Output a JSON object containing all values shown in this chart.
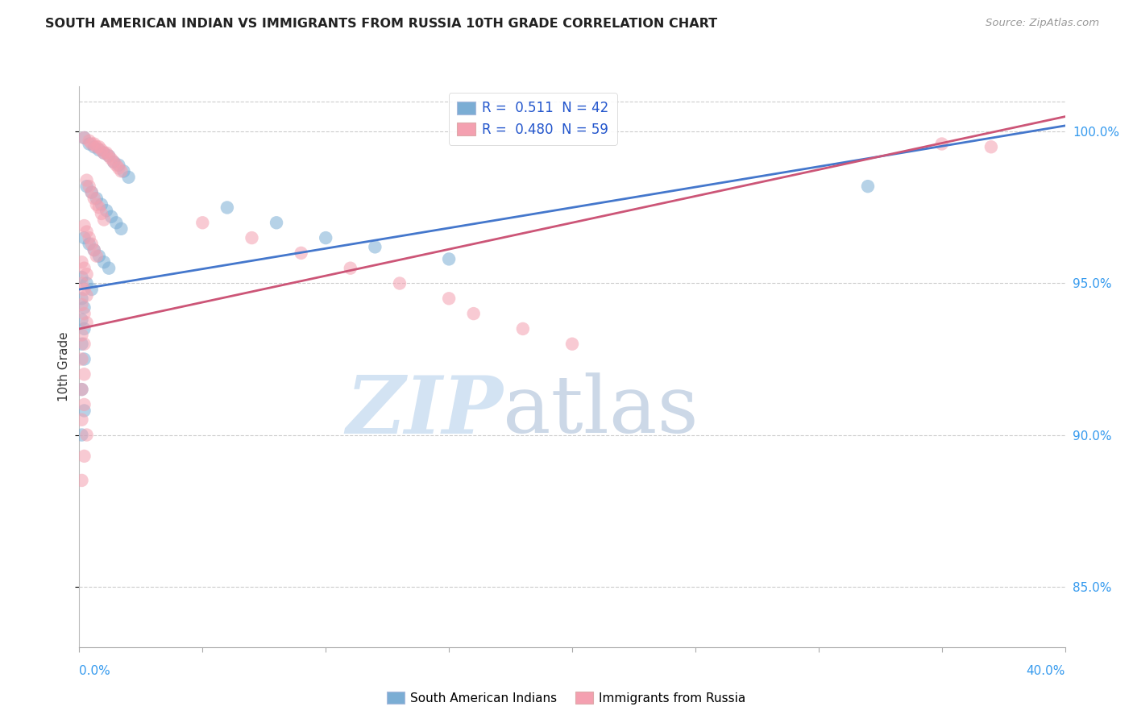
{
  "title": "SOUTH AMERICAN INDIAN VS IMMIGRANTS FROM RUSSIA 10TH GRADE CORRELATION CHART",
  "source": "Source: ZipAtlas.com",
  "ylabel": "10th Grade",
  "legend1_label": "South American Indians",
  "legend2_label": "Immigrants from Russia",
  "r1": 0.511,
  "n1": 42,
  "r2": 0.48,
  "n2": 59,
  "blue_color": "#7BADD4",
  "pink_color": "#F4A0B0",
  "blue_line_color": "#4477CC",
  "pink_line_color": "#CC5577",
  "xlim": [
    0,
    0.4
  ],
  "ylim": [
    83.0,
    101.5
  ],
  "yticks": [
    85.0,
    90.0,
    95.0,
    100.0
  ],
  "ytick_labels": [
    "85.0%",
    "90.0%",
    "95.0%",
    "100.0%"
  ],
  "xtick_positions": [
    0.0,
    0.05,
    0.1,
    0.15,
    0.2,
    0.25,
    0.3,
    0.35,
    0.4
  ],
  "blue_dots": [
    [
      0.002,
      99.8
    ],
    [
      0.004,
      99.6
    ],
    [
      0.006,
      99.5
    ],
    [
      0.008,
      99.4
    ],
    [
      0.01,
      99.3
    ],
    [
      0.012,
      99.2
    ],
    [
      0.014,
      99.0
    ],
    [
      0.016,
      98.9
    ],
    [
      0.018,
      98.7
    ],
    [
      0.02,
      98.5
    ],
    [
      0.003,
      98.2
    ],
    [
      0.005,
      98.0
    ],
    [
      0.007,
      97.8
    ],
    [
      0.009,
      97.6
    ],
    [
      0.011,
      97.4
    ],
    [
      0.013,
      97.2
    ],
    [
      0.015,
      97.0
    ],
    [
      0.017,
      96.8
    ],
    [
      0.002,
      96.5
    ],
    [
      0.004,
      96.3
    ],
    [
      0.006,
      96.1
    ],
    [
      0.008,
      95.9
    ],
    [
      0.01,
      95.7
    ],
    [
      0.012,
      95.5
    ],
    [
      0.001,
      95.2
    ],
    [
      0.003,
      95.0
    ],
    [
      0.005,
      94.8
    ],
    [
      0.001,
      94.5
    ],
    [
      0.002,
      94.2
    ],
    [
      0.001,
      93.8
    ],
    [
      0.002,
      93.5
    ],
    [
      0.001,
      93.0
    ],
    [
      0.002,
      92.5
    ],
    [
      0.001,
      91.5
    ],
    [
      0.002,
      90.8
    ],
    [
      0.001,
      90.0
    ],
    [
      0.06,
      97.5
    ],
    [
      0.08,
      97.0
    ],
    [
      0.1,
      96.5
    ],
    [
      0.12,
      96.2
    ],
    [
      0.15,
      95.8
    ],
    [
      0.32,
      98.2
    ]
  ],
  "pink_dots": [
    [
      0.002,
      99.8
    ],
    [
      0.004,
      99.7
    ],
    [
      0.005,
      99.6
    ],
    [
      0.006,
      99.6
    ],
    [
      0.007,
      99.5
    ],
    [
      0.008,
      99.5
    ],
    [
      0.009,
      99.4
    ],
    [
      0.01,
      99.3
    ],
    [
      0.011,
      99.3
    ],
    [
      0.012,
      99.2
    ],
    [
      0.013,
      99.1
    ],
    [
      0.014,
      99.0
    ],
    [
      0.015,
      98.9
    ],
    [
      0.016,
      98.8
    ],
    [
      0.017,
      98.7
    ],
    [
      0.003,
      98.4
    ],
    [
      0.004,
      98.2
    ],
    [
      0.005,
      98.0
    ],
    [
      0.006,
      97.8
    ],
    [
      0.007,
      97.6
    ],
    [
      0.008,
      97.5
    ],
    [
      0.009,
      97.3
    ],
    [
      0.01,
      97.1
    ],
    [
      0.002,
      96.9
    ],
    [
      0.003,
      96.7
    ],
    [
      0.004,
      96.5
    ],
    [
      0.005,
      96.3
    ],
    [
      0.006,
      96.1
    ],
    [
      0.007,
      95.9
    ],
    [
      0.001,
      95.7
    ],
    [
      0.002,
      95.5
    ],
    [
      0.003,
      95.3
    ],
    [
      0.001,
      95.0
    ],
    [
      0.002,
      94.8
    ],
    [
      0.003,
      94.6
    ],
    [
      0.001,
      94.3
    ],
    [
      0.002,
      94.0
    ],
    [
      0.003,
      93.7
    ],
    [
      0.001,
      93.3
    ],
    [
      0.002,
      93.0
    ],
    [
      0.001,
      92.5
    ],
    [
      0.002,
      92.0
    ],
    [
      0.001,
      91.5
    ],
    [
      0.002,
      91.0
    ],
    [
      0.001,
      90.5
    ],
    [
      0.003,
      90.0
    ],
    [
      0.002,
      89.3
    ],
    [
      0.001,
      88.5
    ],
    [
      0.05,
      97.0
    ],
    [
      0.07,
      96.5
    ],
    [
      0.09,
      96.0
    ],
    [
      0.11,
      95.5
    ],
    [
      0.13,
      95.0
    ],
    [
      0.15,
      94.5
    ],
    [
      0.16,
      94.0
    ],
    [
      0.18,
      93.5
    ],
    [
      0.2,
      93.0
    ],
    [
      0.35,
      99.6
    ],
    [
      0.37,
      99.5
    ]
  ],
  "blue_trend": [
    0.0,
    0.4,
    94.8,
    100.2
  ],
  "pink_trend": [
    0.0,
    0.4,
    93.5,
    100.5
  ]
}
